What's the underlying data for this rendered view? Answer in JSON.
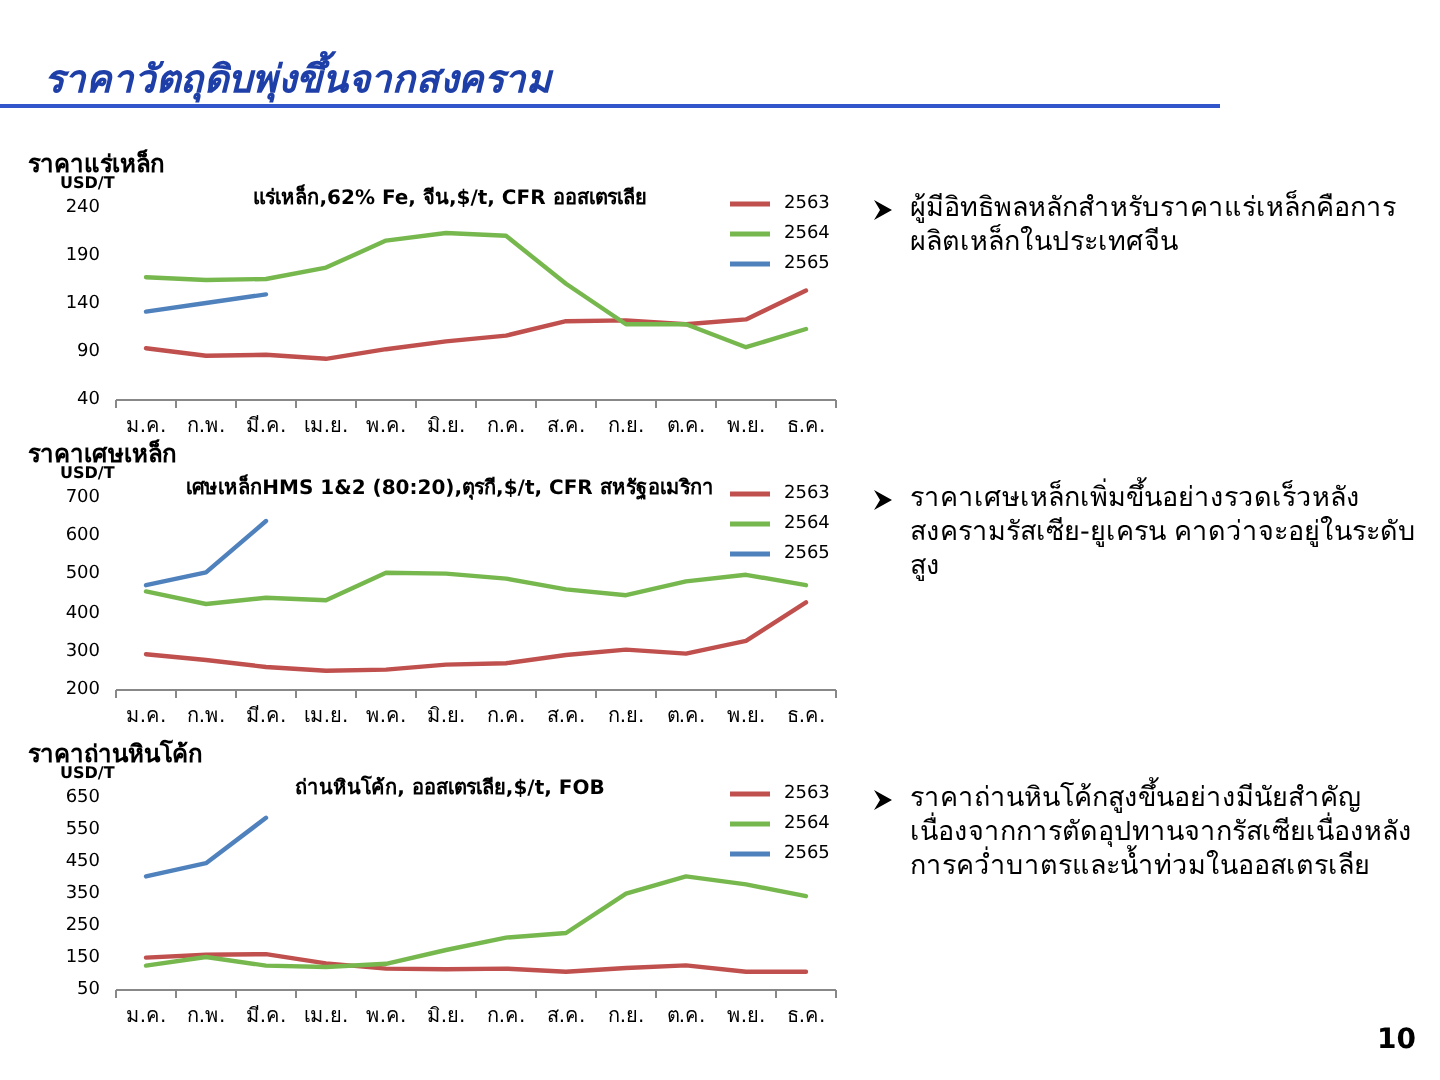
{
  "chart_data": [
    {
      "type": "other",
      "title": "ราคาวัตถุดิบพุ่งขึ้นจากสงคราม",
      "annotations": [
        "10"
      ]
    },
    {
      "type": "line",
      "title": "ราคาแร่เหล็ก",
      "subtitle": "แร่เหล็ก,62% Fe, จีน,$/t, CFR ออสเตรเลีย",
      "ylabel": "USD/T",
      "categories": [
        "ม.ค.",
        "ก.พ.",
        "มี.ค.",
        "เม.ย.",
        "พ.ค.",
        "มิ.ย.",
        "ก.ค.",
        "ส.ค.",
        "ก.ย.",
        "ต.ค.",
        "พ.ย.",
        "ธ.ค."
      ],
      "ylim": [
        40,
        240
      ],
      "yticks": [
        40,
        90,
        140,
        190,
        240
      ],
      "legend": "top right",
      "series": [
        {
          "name": "2563",
          "color": "#c0504d",
          "values": [
            94,
            86,
            87,
            83,
            93,
            101,
            107,
            122,
            123,
            119,
            124,
            154
          ]
        },
        {
          "name": "2564",
          "color": "#77b84e",
          "values": [
            168,
            165,
            166,
            178,
            206,
            214,
            211,
            161,
            119,
            119,
            95,
            114
          ]
        },
        {
          "name": "2565",
          "color": "#4f81bd",
          "values": [
            132,
            141,
            150,
            null,
            null,
            null,
            null,
            null,
            null,
            null,
            null,
            null
          ]
        }
      ],
      "annotations": [
        "ผู้มีอิทธิพลหลักสำหรับราคาแร่เหล็กคือการผลิตเหล็กในประเทศจีน"
      ]
    },
    {
      "type": "line",
      "title": "ราคาเศษเหล็ก",
      "subtitle": "เศษเหล็กHMS 1&2 (80:20),ตุรกี,$/t, CFR สหรัฐอเมริกา",
      "ylabel": "USD/T",
      "categories": [
        "ม.ค.",
        "ก.พ.",
        "มี.ค.",
        "เม.ย.",
        "พ.ค.",
        "มิ.ย.",
        "ก.ค.",
        "ส.ค.",
        "ก.ย.",
        "ต.ค.",
        "พ.ย.",
        "ธ.ค."
      ],
      "ylim": [
        200,
        700
      ],
      "yticks": [
        200,
        300,
        400,
        500,
        600,
        700
      ],
      "legend": "top right",
      "series": [
        {
          "name": "2563",
          "color": "#c0504d",
          "values": [
            293,
            278,
            260,
            250,
            253,
            266,
            270,
            291,
            305,
            295,
            328,
            428
          ]
        },
        {
          "name": "2564",
          "color": "#77b84e",
          "values": [
            457,
            424,
            440,
            434,
            505,
            503,
            490,
            462,
            447,
            483,
            500,
            473
          ]
        },
        {
          "name": "2565",
          "color": "#4f81bd",
          "values": [
            473,
            506,
            640,
            null,
            null,
            null,
            null,
            null,
            null,
            null,
            null,
            null
          ]
        }
      ],
      "annotations": [
        "ราคาเศษเหล็กเพิ่มขึ้นอย่างรวดเร็วหลังสงครามรัสเซีย-ยูเครน คาดว่าจะอยู่ในระดับสูง"
      ]
    },
    {
      "type": "line",
      "title": "ราคาถ่านหินโค้ก",
      "subtitle": "ถ่านหินโค้ก, ออสเตรเลีย,$/t, FOB",
      "ylabel": "USD/T",
      "categories": [
        "ม.ค.",
        "ก.พ.",
        "มี.ค.",
        "เม.ย.",
        "พ.ค.",
        "มิ.ย.",
        "ก.ค.",
        "ส.ค.",
        "ก.ย.",
        "ต.ค.",
        "พ.ย.",
        "ธ.ค."
      ],
      "ylim": [
        50,
        650
      ],
      "yticks": [
        50,
        150,
        250,
        350,
        450,
        550,
        650
      ],
      "legend": "top right",
      "series": [
        {
          "name": "2563",
          "color": "#c0504d",
          "values": [
            151,
            160,
            162,
            133,
            117,
            115,
            117,
            107,
            119,
            127,
            107,
            107
          ]
        },
        {
          "name": "2564",
          "color": "#77b84e",
          "values": [
            126,
            153,
            126,
            122,
            132,
            175,
            214,
            228,
            351,
            405,
            380,
            343
          ]
        },
        {
          "name": "2565",
          "color": "#4f81bd",
          "values": [
            405,
            446,
            588,
            null,
            null,
            null,
            null,
            null,
            null,
            null,
            null,
            null
          ]
        }
      ],
      "annotations": [
        "ราคาถ่านหินโค้กสูงขึ้นอย่างมีนัยสำคัญเนื่องจากการตัดอุปทานจากรัสเซียเนื่องหลังการคว่ำบาตรและน้ำท่วมในออสเตรเลีย"
      ]
    }
  ]
}
